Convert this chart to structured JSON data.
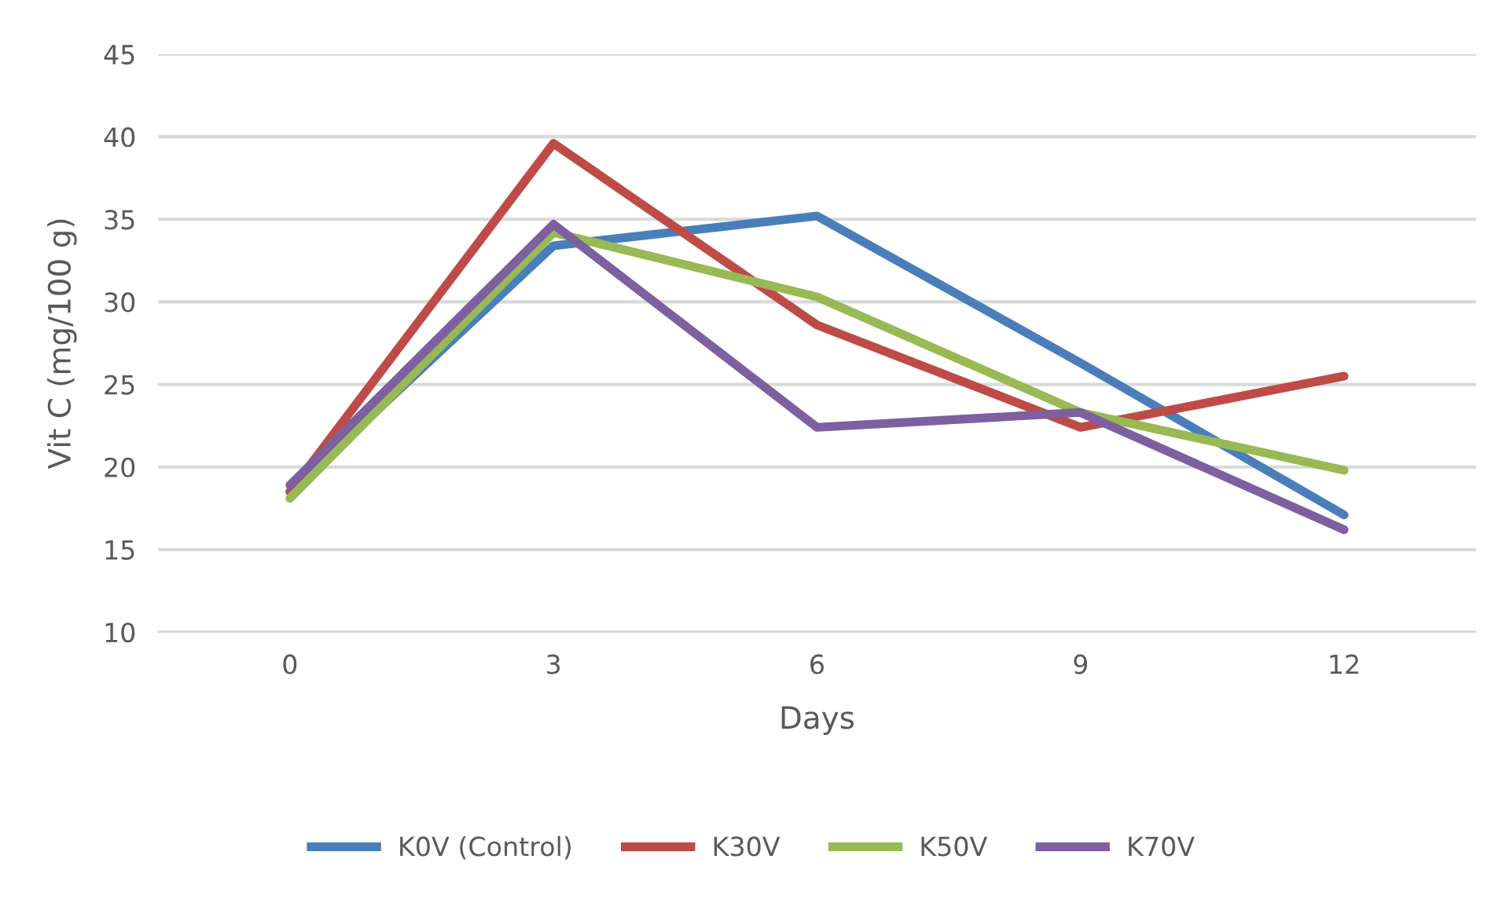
{
  "chart_data": {
    "type": "line",
    "xlabel": "Days",
    "ylabel": "Vit C (mg/100 g)",
    "categories": [
      "0",
      "3",
      "6",
      "9",
      "12"
    ],
    "series": [
      {
        "name": "K0V (Control)",
        "color": "#4a7ebb",
        "values": [
          18.5,
          33.4,
          35.2,
          26.3,
          17.1
        ]
      },
      {
        "name": "K30V",
        "color": "#be4b48",
        "values": [
          18.5,
          39.6,
          28.6,
          22.4,
          25.5
        ]
      },
      {
        "name": "K50V",
        "color": "#98b954",
        "values": [
          18.1,
          34.2,
          30.3,
          23.3,
          19.8
        ]
      },
      {
        "name": "K70V",
        "color": "#7d60a0",
        "values": [
          18.9,
          34.7,
          22.4,
          23.3,
          16.2
        ]
      }
    ],
    "ylim": [
      10,
      45
    ],
    "yticks": [
      10,
      15,
      20,
      25,
      30,
      35,
      40,
      45
    ],
    "grid": "y",
    "legend": "bottom",
    "marker": "none",
    "line_style": "solid"
  }
}
